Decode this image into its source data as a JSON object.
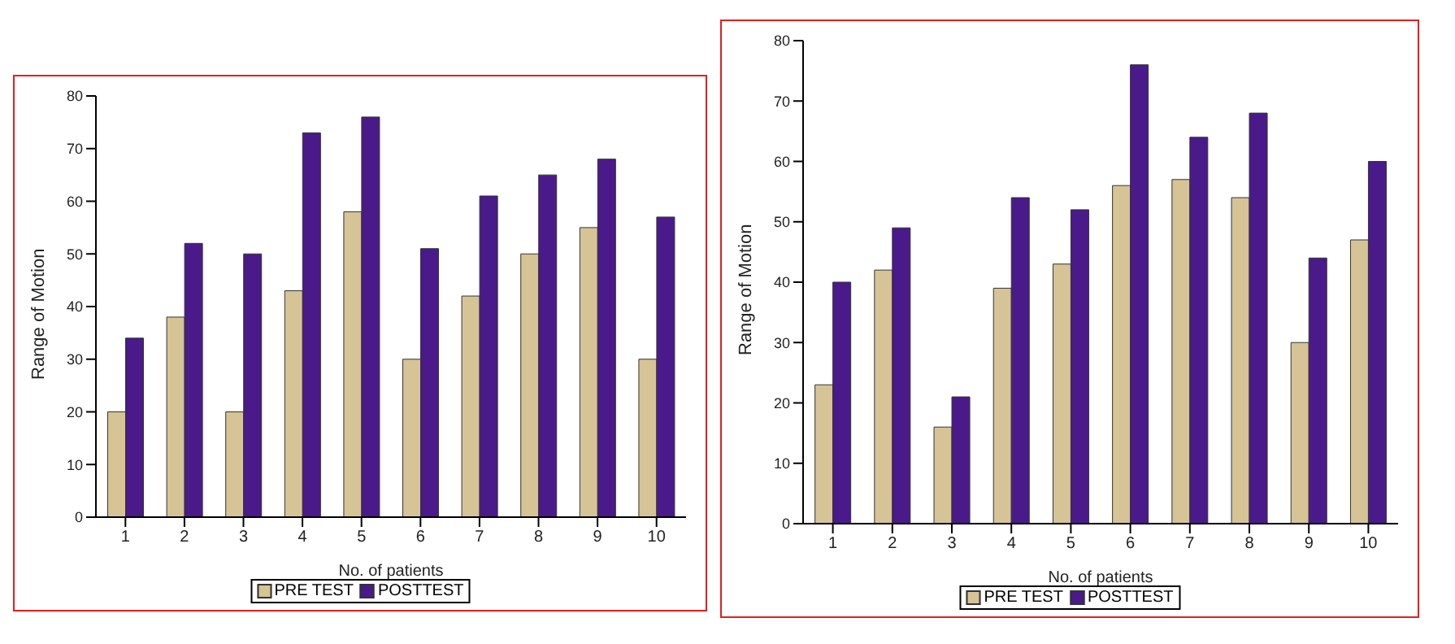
{
  "chart_data": [
    {
      "type": "bar",
      "xlabel": "No. of patients",
      "ylabel": "Range of Motion",
      "categories": [
        "1",
        "2",
        "3",
        "4",
        "5",
        "6",
        "7",
        "8",
        "9",
        "10"
      ],
      "series": [
        {
          "name": "PRE TEST",
          "color": "#d6c396",
          "values": [
            20,
            38,
            20,
            43,
            58,
            30,
            42,
            50,
            55,
            30
          ]
        },
        {
          "name": "POSTTEST",
          "color": "#4a1a8a",
          "values": [
            34,
            52,
            50,
            73,
            76,
            51,
            61,
            65,
            68,
            57
          ]
        }
      ],
      "ylim": [
        0,
        80
      ],
      "yticks": [
        0,
        10,
        20,
        30,
        40,
        50,
        60,
        70,
        80
      ],
      "grid": false,
      "legend": "bottom"
    },
    {
      "type": "bar",
      "xlabel": "No. of patients",
      "ylabel": "Range of Motion",
      "categories": [
        "1",
        "2",
        "3",
        "4",
        "5",
        "6",
        "7",
        "8",
        "9",
        "10"
      ],
      "series": [
        {
          "name": "PRE TEST",
          "color": "#d6c396",
          "values": [
            23,
            42,
            16,
            39,
            43,
            56,
            57,
            54,
            30,
            47
          ]
        },
        {
          "name": "POSTTEST",
          "color": "#4a1a8a",
          "values": [
            40,
            49,
            21,
            54,
            52,
            76,
            64,
            68,
            44,
            60
          ]
        }
      ],
      "ylim": [
        0,
        80
      ],
      "yticks": [
        0,
        10,
        20,
        30,
        40,
        50,
        60,
        70,
        80
      ],
      "grid": false,
      "legend": "bottom"
    }
  ]
}
